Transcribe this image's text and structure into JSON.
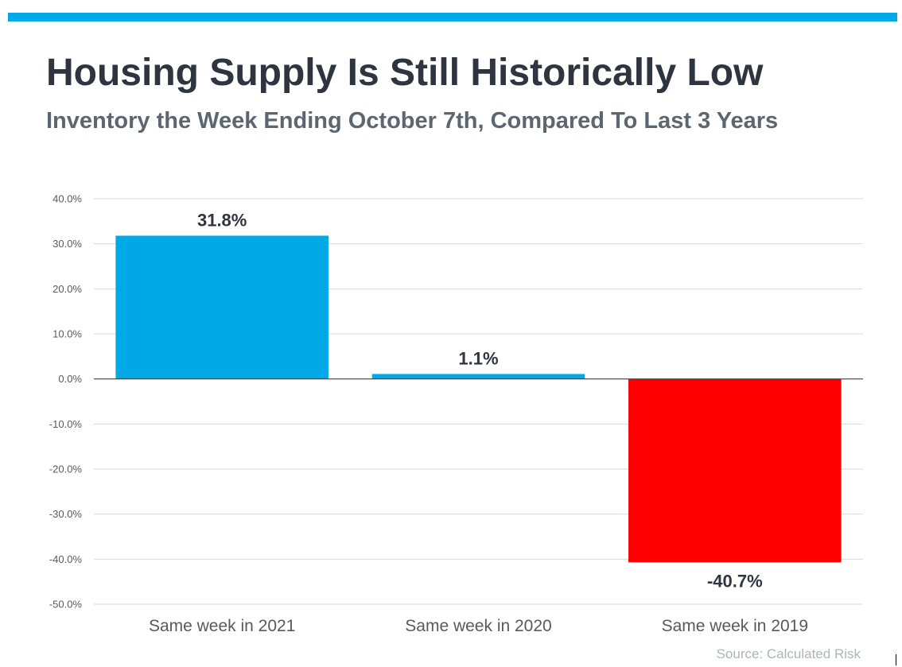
{
  "title": "Housing Supply Is Still Historically Low",
  "subtitle": "Inventory the Week Ending October 7th, Compared To Last 3 Years",
  "source": "Source: Calculated Risk",
  "colors": {
    "accent_bar": "#00a9e6",
    "positive": "#00a9e6",
    "negative": "#ff0000",
    "gridline": "#d9d9d9",
    "zero_line": "#404040"
  },
  "chart_data": {
    "type": "bar",
    "categories": [
      "Same week in 2021",
      "Same week in 2020",
      "Same week in 2019"
    ],
    "values": [
      31.8,
      1.1,
      -40.7
    ],
    "data_labels": [
      "31.8%",
      "1.1%",
      "-40.7%"
    ],
    "bar_colors": [
      "#00a9e6",
      "#00a9e6",
      "#ff0000"
    ],
    "title": "Housing Supply Is Still Historically Low",
    "subtitle": "Inventory the Week Ending October 7th, Compared To Last 3 Years",
    "xlabel": "",
    "ylabel": "",
    "ylim": [
      -50,
      40
    ],
    "y_ticks": [
      40,
      30,
      20,
      10,
      0,
      -10,
      -20,
      -30,
      -40,
      -50
    ],
    "y_tick_labels": [
      "40.0%",
      "30.0%",
      "20.0%",
      "10.0%",
      "0.0%",
      "-10.0%",
      "-20.0%",
      "-30.0%",
      "-40.0%",
      "-50.0%"
    ],
    "grid": true,
    "legend": "none"
  }
}
